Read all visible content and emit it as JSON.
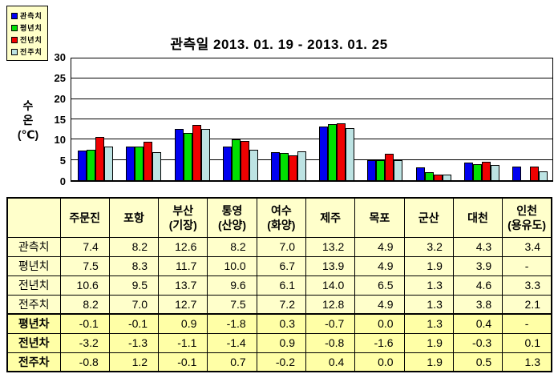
{
  "chart_data": {
    "type": "bar",
    "title": "관측일 2013. 01. 19 -  2013. 01. 25",
    "ylabel_lines": [
      "수",
      "온",
      "(℃)"
    ],
    "ylim": [
      0,
      30
    ],
    "ytick_step": 5,
    "grid": true,
    "legend_position": "top-left",
    "categories": [
      "주문진",
      "포항",
      "부산(기장)",
      "통영(산양)",
      "여수(화양)",
      "제주",
      "목포",
      "군산",
      "대천",
      "인천(용유도)"
    ],
    "series": [
      {
        "name": "관측치",
        "color": "#0101F0",
        "values": [
          7.4,
          8.2,
          12.6,
          8.2,
          7.0,
          13.2,
          4.9,
          3.2,
          4.3,
          3.4
        ]
      },
      {
        "name": "평년치",
        "color": "#01DF01",
        "values": [
          7.5,
          8.3,
          11.7,
          10.0,
          6.7,
          13.9,
          4.9,
          1.9,
          3.9,
          null
        ]
      },
      {
        "name": "전년치",
        "color": "#F00101",
        "values": [
          10.6,
          9.5,
          13.7,
          9.6,
          6.1,
          14.0,
          6.5,
          1.3,
          4.6,
          3.3
        ]
      },
      {
        "name": "전주치",
        "color": "#BDE3E3",
        "values": [
          8.2,
          7.0,
          12.7,
          7.5,
          7.2,
          12.8,
          4.9,
          1.3,
          3.8,
          2.1
        ]
      }
    ]
  },
  "table": {
    "corner": "",
    "columns": [
      [
        "주문진"
      ],
      [
        "포항"
      ],
      [
        "부산",
        "(기장)"
      ],
      [
        "통영",
        "(산양)"
      ],
      [
        "여수",
        "(화양)"
      ],
      [
        "제주"
      ],
      [
        "목포"
      ],
      [
        "군산"
      ],
      [
        "대천"
      ],
      [
        "인천",
        "(용유도)"
      ]
    ],
    "rows": [
      {
        "label": "관측치",
        "bold": false,
        "values": [
          "7.4",
          "8.2",
          "12.6",
          "8.2",
          "7.0",
          "13.2",
          "4.9",
          "3.2",
          "4.3",
          "3.4"
        ]
      },
      {
        "label": "평년치",
        "bold": false,
        "values": [
          "7.5",
          "8.3",
          "11.7",
          "10.0",
          "6.7",
          "13.9",
          "4.9",
          "1.9",
          "3.9",
          "-"
        ]
      },
      {
        "label": "전년치",
        "bold": false,
        "values": [
          "10.6",
          "9.5",
          "13.7",
          "9.6",
          "6.1",
          "14.0",
          "6.5",
          "1.3",
          "4.6",
          "3.3"
        ]
      },
      {
        "label": "전주치",
        "bold": false,
        "values": [
          "8.2",
          "7.0",
          "12.7",
          "7.5",
          "7.2",
          "12.8",
          "4.9",
          "1.3",
          "3.8",
          "2.1"
        ]
      },
      {
        "label": "평년차",
        "bold": true,
        "values": [
          "-0.1",
          "-0.1",
          "0.9",
          "-1.8",
          "0.3",
          "-0.7",
          "0.0",
          "1.3",
          "0.4",
          "-"
        ]
      },
      {
        "label": "전년차",
        "bold": true,
        "values": [
          "-3.2",
          "-1.3",
          "-1.1",
          "-1.4",
          "0.9",
          "-0.8",
          "-1.6",
          "1.9",
          "-0.3",
          "0.1"
        ]
      },
      {
        "label": "전주차",
        "bold": true,
        "values": [
          "-0.8",
          "1.2",
          "-0.1",
          "0.7",
          "-0.2",
          "0.4",
          "0.0",
          "1.9",
          "0.5",
          "1.3"
        ]
      }
    ],
    "colors": {
      "cell_bg": "#FFFFCB",
      "diff_row_bg": "#FFFFA6"
    }
  }
}
